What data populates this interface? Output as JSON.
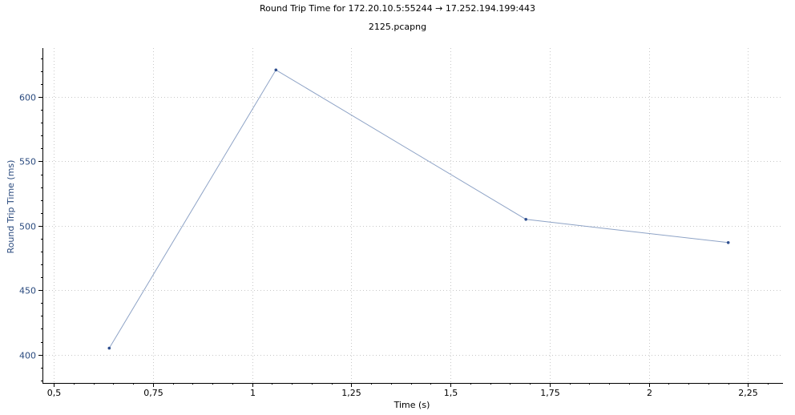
{
  "chart_data": {
    "type": "line",
    "title": "Round Trip Time for 172.20.10.5:55244 → 17.252.194.199:443",
    "subtitle": "2125.pcapng",
    "xlabel": "Time (s)",
    "ylabel": "Round Trip Time (ms)",
    "xlim": [
      0.5,
      2.34
    ],
    "ylim": [
      378,
      638
    ],
    "x_ticks": [
      {
        "value": 0.5,
        "label": "0,5"
      },
      {
        "value": 0.75,
        "label": "0,75"
      },
      {
        "value": 1.0,
        "label": "1"
      },
      {
        "value": 1.25,
        "label": "1,25"
      },
      {
        "value": 1.5,
        "label": "1,5"
      },
      {
        "value": 1.75,
        "label": "1,75"
      },
      {
        "value": 2.0,
        "label": "2"
      },
      {
        "value": 2.25,
        "label": "2,25"
      }
    ],
    "y_ticks": [
      {
        "value": 400,
        "label": "400"
      },
      {
        "value": 450,
        "label": "450"
      },
      {
        "value": 500,
        "label": "500"
      },
      {
        "value": 550,
        "label": "550"
      },
      {
        "value": 600,
        "label": "600"
      }
    ],
    "grid": true,
    "series": [
      {
        "x": [
          0.64,
          1.06,
          1.69,
          2.2
        ],
        "y": [
          405,
          621,
          505,
          487
        ]
      }
    ],
    "colors": {
      "line": "#8ea3c6",
      "marker": "#2f4f8f",
      "y_axis_text": "#2a4a7e"
    }
  }
}
